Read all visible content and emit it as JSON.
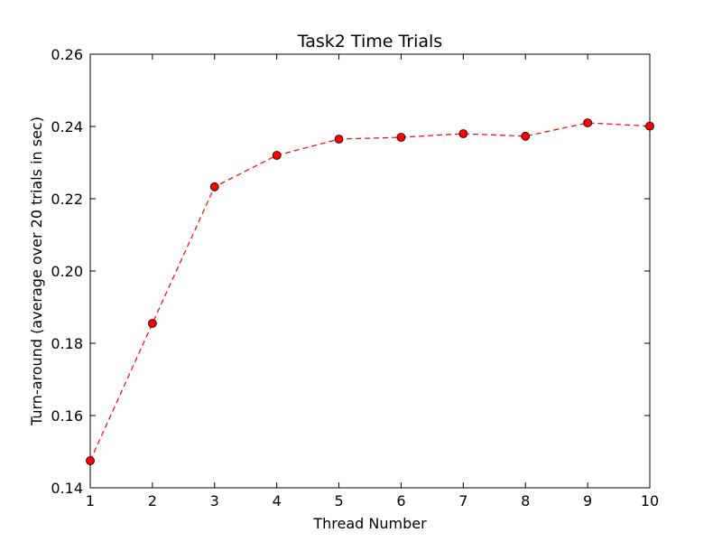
{
  "chart_data": {
    "type": "line",
    "title": "Task2 Time Trials",
    "xlabel": "Thread Number",
    "ylabel": "Turn-around (average over 20 trials in sec)",
    "xlim": [
      1,
      10
    ],
    "ylim": [
      0.14,
      0.26
    ],
    "x_ticks": [
      1,
      2,
      3,
      4,
      5,
      6,
      7,
      8,
      9,
      10
    ],
    "y_ticks": [
      "0.14",
      "0.16",
      "0.18",
      "0.20",
      "0.22",
      "0.24",
      "0.26"
    ],
    "grid": false,
    "series": [
      {
        "x": [
          1,
          2,
          3,
          4,
          5,
          6,
          7,
          8,
          9,
          10
        ],
        "values": [
          0.1475,
          0.1855,
          0.2233,
          0.232,
          0.2365,
          0.237,
          0.238,
          0.2373,
          0.241,
          0.2401
        ],
        "color": "#ff0000",
        "line_style": "dashed",
        "marker": "circle"
      }
    ]
  }
}
